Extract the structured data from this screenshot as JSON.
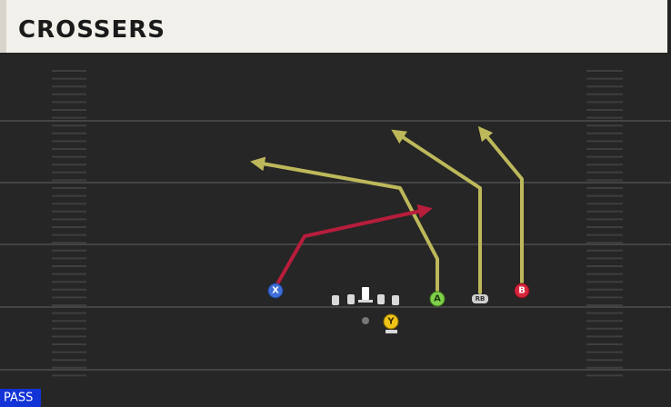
{
  "header": {
    "title": "CROSSERS"
  },
  "players": [
    {
      "label": "X"
    },
    {
      "label": "A"
    },
    {
      "label": "RB"
    },
    {
      "label": "B"
    },
    {
      "label": "Y"
    }
  ],
  "badge": {
    "label": "PASS"
  }
}
